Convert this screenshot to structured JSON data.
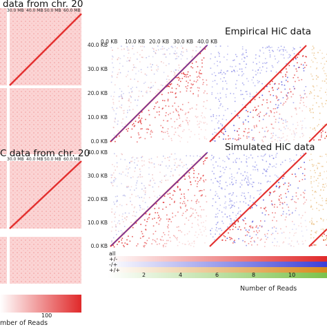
{
  "chart_data": {
    "type": "heatmap",
    "left_panels": [
      {
        "title": "data from chr. 20",
        "x_tick_labels": [
          "30.0 MB",
          "40.0 MB",
          "50.0 MB",
          "60.0 MB"
        ]
      },
      {
        "title": "C data from chr. 20",
        "x_tick_labels": [
          "30.0 MB",
          "40.0 MB",
          "50.0 MB",
          "60.0 MB"
        ],
        "colorbar": {
          "tick_labels": [
            "100"
          ],
          "label": "mber of Reads"
        }
      }
    ],
    "right_panels": {
      "x_tick_labels": [
        "0.0 KB",
        "10.0 KB",
        "20.0 KB",
        "30.0 KB",
        "40.0 KB"
      ],
      "y_tick_labels": [
        "40.0 KB",
        "30.0 KB",
        "20.0 KB",
        "10.0 KB",
        "0.0 KB"
      ],
      "xlim_kb": [
        0,
        40
      ],
      "ylim_kb": [
        0,
        40
      ],
      "rows": [
        {
          "title": "Empirical HiC data"
        },
        {
          "title": "Simulated HiC data"
        }
      ],
      "columns": [
        "all",
        "+/-",
        "-/+",
        "+/+"
      ],
      "column_colors": {
        "all": "#e0292a",
        "+/-": "#3b3fd8",
        "-/+": "#d88a1c",
        "+/+": "#7cc24a"
      }
    },
    "legend": {
      "entries": [
        "all",
        "+/-",
        "-/+",
        "+/+"
      ],
      "colorbar_ticks": [
        2,
        4,
        6,
        8,
        10
      ],
      "label": "Number of Reads",
      "range": [
        0,
        12
      ]
    }
  }
}
